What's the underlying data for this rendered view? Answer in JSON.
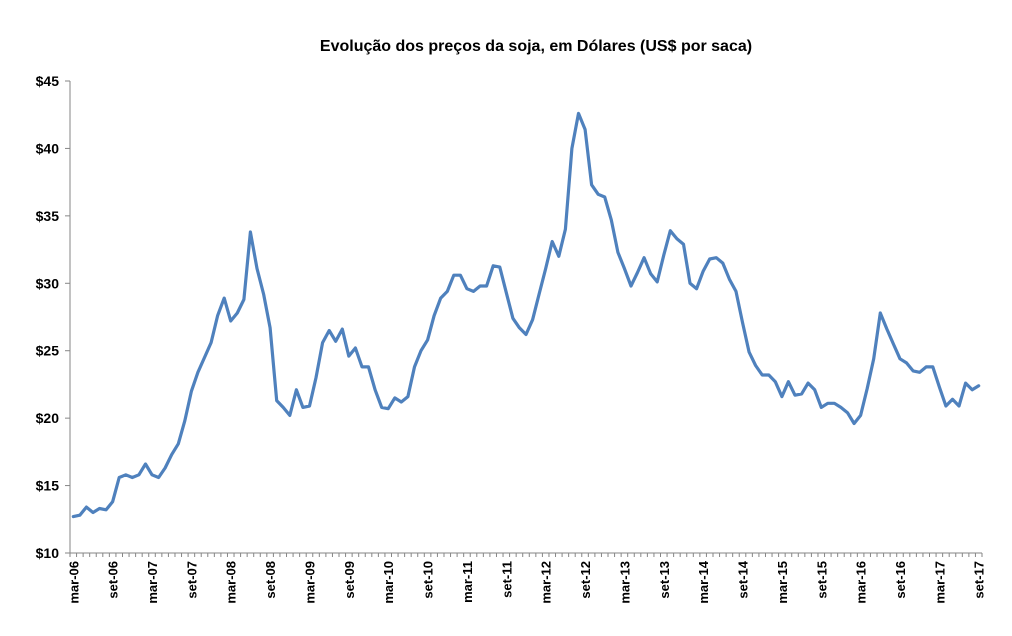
{
  "chart_data": {
    "type": "line",
    "title": "Evolução dos preços da soja, em Dólares (US$ por saca)",
    "xlabel": "",
    "ylabel": "",
    "ylim": [
      10,
      45
    ],
    "y_ticks": [
      {
        "value": 10,
        "label": "$10"
      },
      {
        "value": 15,
        "label": "$15"
      },
      {
        "value": 20,
        "label": "$20"
      },
      {
        "value": 25,
        "label": "$25"
      },
      {
        "value": 30,
        "label": "$30"
      },
      {
        "value": 35,
        "label": "$35"
      },
      {
        "value": 40,
        "label": "$40"
      },
      {
        "value": 45,
        "label": "$45"
      }
    ],
    "x_ticks": [
      "mar-06",
      "set-06",
      "mar-07",
      "set-07",
      "mar-08",
      "set-08",
      "mar-09",
      "set-09",
      "mar-10",
      "set-10",
      "mar-11",
      "set-11",
      "mar-12",
      "set-12",
      "mar-13",
      "set-13",
      "mar-14",
      "set-14",
      "mar-15",
      "set-15",
      "mar-16",
      "set-16",
      "mar-17",
      "set-17"
    ],
    "x_start": "mar-06",
    "x_end": "set-17",
    "grid": false,
    "line_color": "#4f81bd",
    "series": [
      {
        "values": [
          12.7,
          12.8,
          13.4,
          13.0,
          13.3,
          13.2,
          13.8,
          15.6,
          15.8,
          15.6,
          15.8,
          16.6,
          15.8,
          15.6,
          16.3,
          17.3,
          18.1,
          19.8,
          22.0,
          23.4,
          24.5,
          25.6,
          27.6,
          28.9,
          27.2,
          27.8,
          28.8,
          33.8,
          31.1,
          29.2,
          26.7,
          21.3,
          20.8,
          20.2,
          22.1,
          20.8,
          20.9,
          23.0,
          25.6,
          26.5,
          25.7,
          26.6,
          24.6,
          25.2,
          23.8,
          23.8,
          22.1,
          20.8,
          20.7,
          21.5,
          21.2,
          21.6,
          23.8,
          25.0,
          25.8,
          27.6,
          28.9,
          29.4,
          30.6,
          30.6,
          29.6,
          29.4,
          29.8,
          29.8,
          31.3,
          31.2,
          29.3,
          27.4,
          26.7,
          26.2,
          27.3,
          29.2,
          31.1,
          33.1,
          32.0,
          34.0,
          40.0,
          42.6,
          41.4,
          37.3,
          36.6,
          36.4,
          34.7,
          32.3,
          31.1,
          29.8,
          30.8,
          31.9,
          30.7,
          30.1,
          32.1,
          33.9,
          33.3,
          32.9,
          30.0,
          29.6,
          30.9,
          31.8,
          31.9,
          31.5,
          30.3,
          29.4,
          27.1,
          24.9,
          23.9,
          23.2,
          23.2,
          22.7,
          21.6,
          22.7,
          21.7,
          21.8,
          22.6,
          22.1,
          20.8,
          21.1,
          21.1,
          20.8,
          20.4,
          19.6,
          20.2,
          22.2,
          24.4,
          27.8,
          26.6,
          25.5,
          24.4,
          24.1,
          23.5,
          23.4,
          23.8,
          23.8,
          22.3,
          20.9,
          21.4,
          20.9,
          22.6,
          22.1,
          22.4
        ]
      }
    ]
  }
}
